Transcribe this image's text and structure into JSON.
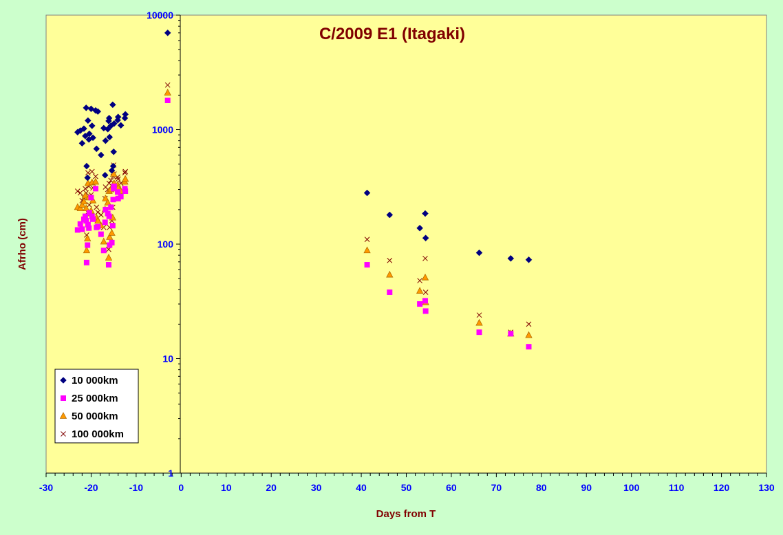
{
  "chart_data": {
    "type": "scatter",
    "title": "C/2009 E1 (Itagaki)",
    "xlabel": "Days from T",
    "ylabel": "Afrho (cm)",
    "xlim": [
      -30,
      130
    ],
    "ylim": [
      1,
      10000
    ],
    "yscale": "log",
    "x_ticks": [
      "-30",
      "-20",
      "-10",
      "0",
      "10",
      "20",
      "30",
      "40",
      "50",
      "60",
      "70",
      "80",
      "90",
      "100",
      "110",
      "120",
      "130"
    ],
    "y_ticks": [
      "1",
      "10",
      "100",
      "1000",
      "10000"
    ],
    "grid": false,
    "legend_position": "bottom-left",
    "colors": {
      "background": "#ccffcc",
      "plot_area": "#ffff99",
      "title": "#800000",
      "tick_labels": "#0000ff"
    },
    "series": [
      {
        "name": "10 000km",
        "marker": "diamond",
        "color": "#000080",
        "points": [
          [
            -3,
            7000
          ],
          [
            -23,
            950
          ],
          [
            -22.4,
            980
          ],
          [
            -22,
            760
          ],
          [
            -21.6,
            1020
          ],
          [
            -21.3,
            880
          ],
          [
            -21.1,
            1550
          ],
          [
            -21,
            480
          ],
          [
            -20.8,
            380
          ],
          [
            -20.7,
            1200
          ],
          [
            -20.5,
            820
          ],
          [
            -20.4,
            920
          ],
          [
            -20,
            1520
          ],
          [
            -19.8,
            1080
          ],
          [
            -19.6,
            850
          ],
          [
            -19,
            1470
          ],
          [
            -18.8,
            680
          ],
          [
            -18.5,
            1440
          ],
          [
            -17.8,
            600
          ],
          [
            -17.2,
            1030
          ],
          [
            -16.9,
            400
          ],
          [
            -16.8,
            800
          ],
          [
            -16.3,
            1010
          ],
          [
            -16.1,
            1190
          ],
          [
            -16,
            1260
          ],
          [
            -15.9,
            860
          ],
          [
            -15.6,
            1080
          ],
          [
            -15.4,
            440
          ],
          [
            -15.2,
            1650
          ],
          [
            -15.1,
            480
          ],
          [
            -15,
            640
          ],
          [
            -14.9,
            1130
          ],
          [
            -14.1,
            1210
          ],
          [
            -14,
            1290
          ],
          [
            -13.4,
            1090
          ],
          [
            -12.5,
            1260
          ],
          [
            -12.4,
            1360
          ],
          [
            41.3,
            280
          ],
          [
            46.3,
            180
          ],
          [
            53,
            138
          ],
          [
            54.2,
            185
          ],
          [
            54.3,
            113
          ],
          [
            66.2,
            84
          ],
          [
            73.2,
            75
          ],
          [
            77.2,
            73
          ]
        ]
      },
      {
        "name": "25 000km",
        "marker": "square",
        "color": "#ff00ff",
        "points": [
          [
            -3,
            1800
          ],
          [
            -23,
            133
          ],
          [
            -22.4,
            150
          ],
          [
            -22,
            135
          ],
          [
            -21.6,
            165
          ],
          [
            -21.3,
            175
          ],
          [
            -21.1,
            160
          ],
          [
            -21,
            69
          ],
          [
            -20.8,
            98
          ],
          [
            -20.7,
            148
          ],
          [
            -20.5,
            138
          ],
          [
            -20.4,
            188
          ],
          [
            -20,
            255
          ],
          [
            -19.8,
            175
          ],
          [
            -19.6,
            165
          ],
          [
            -19,
            305
          ],
          [
            -18.8,
            140
          ],
          [
            -18.5,
            142
          ],
          [
            -17.8,
            122
          ],
          [
            -17.2,
            88
          ],
          [
            -16.9,
            155
          ],
          [
            -16.8,
            200
          ],
          [
            -16.3,
            185
          ],
          [
            -16.1,
            66
          ],
          [
            -16,
            175
          ],
          [
            -15.9,
            98
          ],
          [
            -15.6,
            210
          ],
          [
            -15.4,
            103
          ],
          [
            -15.2,
            145
          ],
          [
            -15.1,
            245
          ],
          [
            -15,
            305
          ],
          [
            -14.9,
            320
          ],
          [
            -14.1,
            285
          ],
          [
            -14,
            250
          ],
          [
            -13.4,
            260
          ],
          [
            -12.5,
            305
          ],
          [
            -12.4,
            290
          ],
          [
            41.3,
            66
          ],
          [
            46.3,
            38
          ],
          [
            53,
            30
          ],
          [
            54.2,
            32
          ],
          [
            54.3,
            26
          ],
          [
            66.2,
            17
          ],
          [
            73.2,
            16.5
          ],
          [
            77.2,
            12.7
          ]
        ]
      },
      {
        "name": "50 000km",
        "marker": "triangle",
        "color": "#ff9900",
        "points": [
          [
            -3,
            2100
          ],
          [
            -23,
            210
          ],
          [
            -22.4,
            205
          ],
          [
            -22,
            220
          ],
          [
            -21.6,
            235
          ],
          [
            -21.3,
            265
          ],
          [
            -21.1,
            205
          ],
          [
            -21,
            88
          ],
          [
            -20.8,
            112
          ],
          [
            -20.7,
            340
          ],
          [
            -20.5,
            255
          ],
          [
            -20.4,
            185
          ],
          [
            -20,
            195
          ],
          [
            -19.8,
            345
          ],
          [
            -19.6,
            240
          ],
          [
            -19,
            350
          ],
          [
            -18.8,
            170
          ],
          [
            -18.5,
            160
          ],
          [
            -17.8,
            145
          ],
          [
            -17.2,
            105
          ],
          [
            -16.9,
            200
          ],
          [
            -16.8,
            250
          ],
          [
            -16.3,
            230
          ],
          [
            -16.1,
            76
          ],
          [
            -16,
            290
          ],
          [
            -15.9,
            115
          ],
          [
            -15.6,
            300
          ],
          [
            -15.4,
            125
          ],
          [
            -15.2,
            170
          ],
          [
            -15.1,
            330
          ],
          [
            -15,
            410
          ],
          [
            -14.9,
            340
          ],
          [
            -14.1,
            330
          ],
          [
            -14,
            310
          ],
          [
            -13.4,
            290
          ],
          [
            -12.5,
            350
          ],
          [
            -12.4,
            370
          ],
          [
            41.3,
            88
          ],
          [
            46.3,
            54
          ],
          [
            53,
            39
          ],
          [
            54.2,
            51
          ],
          [
            54.3,
            31
          ],
          [
            66.2,
            20.5
          ],
          [
            73.2,
            16.5
          ],
          [
            77.2,
            16
          ]
        ]
      },
      {
        "name": "100 000km",
        "marker": "x",
        "color": "#800000",
        "points": [
          [
            -3,
            2450
          ],
          [
            -23,
            290
          ],
          [
            -22.4,
            280
          ],
          [
            -22,
            240
          ],
          [
            -21.6,
            255
          ],
          [
            -21.3,
            305
          ],
          [
            -21.1,
            280
          ],
          [
            -21,
            120
          ],
          [
            -20.8,
            190
          ],
          [
            -20.7,
            420
          ],
          [
            -20.5,
            320
          ],
          [
            -20.4,
            220
          ],
          [
            -20,
            270
          ],
          [
            -19.8,
            430
          ],
          [
            -19.6,
            310
          ],
          [
            -19,
            390
          ],
          [
            -18.8,
            210
          ],
          [
            -18.5,
            190
          ],
          [
            -17.8,
            180
          ],
          [
            -17.2,
            140
          ],
          [
            -16.9,
            250
          ],
          [
            -16.8,
            315
          ],
          [
            -16.3,
            300
          ],
          [
            -16.1,
            90
          ],
          [
            -16,
            340
          ],
          [
            -15.9,
            140
          ],
          [
            -15.6,
            360
          ],
          [
            -15.4,
            160
          ],
          [
            -15.2,
            210
          ],
          [
            -15.1,
            390
          ],
          [
            -15,
            490
          ],
          [
            -14.9,
            410
          ],
          [
            -14.1,
            385
          ],
          [
            -14,
            370
          ],
          [
            -13.4,
            340
          ],
          [
            -12.5,
            420
          ],
          [
            -12.4,
            430
          ],
          [
            41.3,
            110
          ],
          [
            46.3,
            72
          ],
          [
            53,
            48
          ],
          [
            54.2,
            75
          ],
          [
            54.3,
            38
          ],
          [
            66.2,
            24
          ],
          [
            73.2,
            17
          ],
          [
            77.2,
            20
          ]
        ]
      }
    ]
  }
}
